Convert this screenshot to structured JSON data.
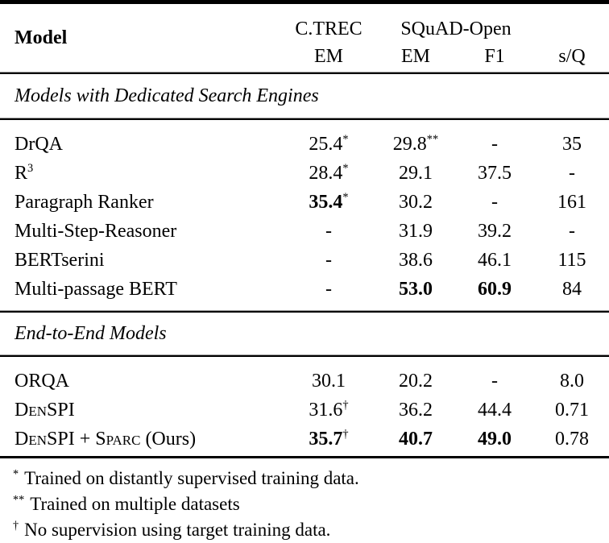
{
  "table": {
    "header": {
      "model_label": "Model",
      "groups": [
        {
          "label": "C.TREC",
          "span": 1
        },
        {
          "label": "SQuAD-Open",
          "span": 2
        }
      ],
      "metrics": [
        "EM",
        "EM",
        "F1",
        "s/Q"
      ]
    },
    "sections": [
      {
        "title": "Models with Dedicated Search Engines",
        "rows": [
          {
            "model": [
              {
                "t": "DrQA"
              }
            ],
            "cells": [
              [
                {
                  "t": "25.4"
                },
                {
                  "t": "*",
                  "s": "sup"
                }
              ],
              [
                {
                  "t": "29.8"
                },
                {
                  "t": "**",
                  "s": "sup"
                }
              ],
              [
                {
                  "t": "-"
                }
              ],
              [
                {
                  "t": "35"
                }
              ]
            ]
          },
          {
            "model": [
              {
                "t": "R"
              },
              {
                "t": "3",
                "s": "sup"
              }
            ],
            "cells": [
              [
                {
                  "t": "28.4"
                },
                {
                  "t": "*",
                  "s": "sup"
                }
              ],
              [
                {
                  "t": "29.1"
                }
              ],
              [
                {
                  "t": "37.5"
                }
              ],
              [
                {
                  "t": "-"
                }
              ]
            ]
          },
          {
            "model": [
              {
                "t": "Paragraph Ranker"
              }
            ],
            "cells": [
              [
                {
                  "t": "35.4",
                  "s": "b"
                },
                {
                  "t": "*",
                  "s": "sup"
                }
              ],
              [
                {
                  "t": "30.2"
                }
              ],
              [
                {
                  "t": "-"
                }
              ],
              [
                {
                  "t": "161"
                }
              ]
            ]
          },
          {
            "model": [
              {
                "t": "Multi-Step-Reasoner"
              }
            ],
            "cells": [
              [
                {
                  "t": "-"
                }
              ],
              [
                {
                  "t": "31.9"
                }
              ],
              [
                {
                  "t": "39.2"
                }
              ],
              [
                {
                  "t": "-"
                }
              ]
            ]
          },
          {
            "model": [
              {
                "t": "BERTserini"
              }
            ],
            "cells": [
              [
                {
                  "t": "-"
                }
              ],
              [
                {
                  "t": "38.6"
                }
              ],
              [
                {
                  "t": "46.1"
                }
              ],
              [
                {
                  "t": "115"
                }
              ]
            ]
          },
          {
            "model": [
              {
                "t": "Multi-passage BERT"
              }
            ],
            "cells": [
              [
                {
                  "t": "-"
                }
              ],
              [
                {
                  "t": "53.0",
                  "s": "b"
                }
              ],
              [
                {
                  "t": "60.9",
                  "s": "b"
                }
              ],
              [
                {
                  "t": "84"
                }
              ]
            ]
          }
        ]
      },
      {
        "title": "End-to-End Models",
        "rows": [
          {
            "model": [
              {
                "t": "ORQA"
              }
            ],
            "cells": [
              [
                {
                  "t": "30.1"
                }
              ],
              [
                {
                  "t": "20.2"
                }
              ],
              [
                {
                  "t": "-"
                }
              ],
              [
                {
                  "t": "8.0"
                }
              ]
            ]
          },
          {
            "model": [
              {
                "t": "DenSPI",
                "s": "sc"
              }
            ],
            "cells": [
              [
                {
                  "t": "31.6"
                },
                {
                  "t": "†",
                  "s": "sup"
                }
              ],
              [
                {
                  "t": "36.2"
                }
              ],
              [
                {
                  "t": "44.4"
                }
              ],
              [
                {
                  "t": "0.71"
                }
              ]
            ]
          },
          {
            "model": [
              {
                "t": "DenSPI",
                "s": "sc"
              },
              {
                "t": " + "
              },
              {
                "t": "Sparc",
                "s": "sc"
              },
              {
                "t": " (Ours)"
              }
            ],
            "cells": [
              [
                {
                  "t": "35.7",
                  "s": "b"
                },
                {
                  "t": "†",
                  "s": "sup"
                }
              ],
              [
                {
                  "t": "40.7",
                  "s": "b"
                }
              ],
              [
                {
                  "t": "49.0",
                  "s": "b"
                }
              ],
              [
                {
                  "t": "0.78"
                }
              ]
            ]
          }
        ]
      }
    ],
    "footnotes": [
      {
        "marker": "*",
        "text": "Trained on distantly supervised training data."
      },
      {
        "marker": "**",
        "text": "Trained on multiple datasets"
      },
      {
        "marker": "†",
        "text": "No supervision using target training data."
      }
    ]
  }
}
